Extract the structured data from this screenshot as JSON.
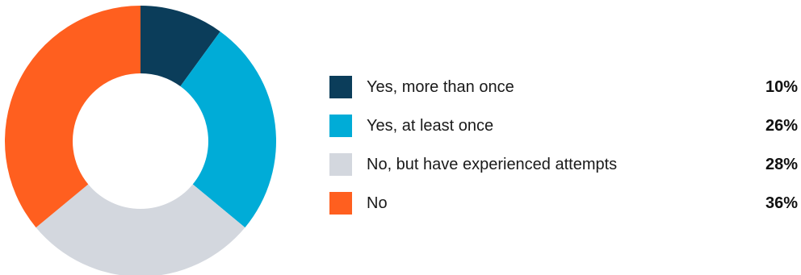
{
  "chart_data": {
    "type": "pie",
    "donut": true,
    "categories": [
      "Yes, more than once",
      "Yes, at least once",
      "No, but have experienced attempts",
      "No"
    ],
    "values": [
      10,
      26,
      28,
      36
    ],
    "value_labels": [
      "10%",
      "26%",
      "28%",
      "36%"
    ],
    "unit": "%",
    "colors": [
      "#0b3d5a",
      "#00acd7",
      "#d3d7de",
      "#ff5f1f"
    ],
    "legend_position": "right",
    "title": ""
  }
}
